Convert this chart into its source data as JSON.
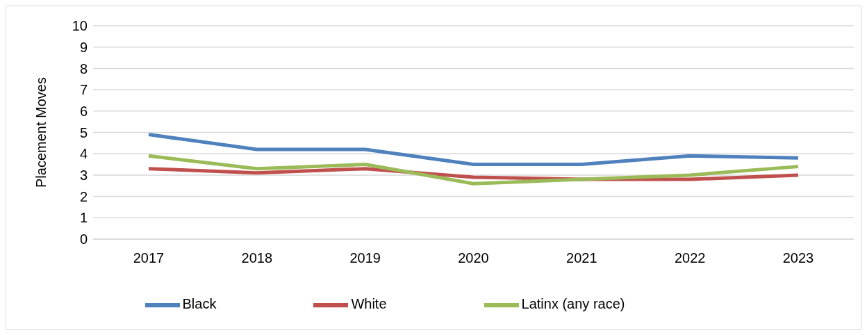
{
  "chart_data": {
    "type": "line",
    "ylabel": "Placement Moves",
    "categories": [
      "2017",
      "2018",
      "2019",
      "2020",
      "2021",
      "2022",
      "2023"
    ],
    "series": [
      {
        "name": "Black",
        "color": "#4f81bd",
        "values": [
          4.9,
          4.2,
          4.2,
          3.5,
          3.5,
          3.9,
          3.8
        ]
      },
      {
        "name": "White",
        "color": "#c0504d",
        "values": [
          3.3,
          3.1,
          3.3,
          2.9,
          2.8,
          2.8,
          3.0
        ]
      },
      {
        "name": "Latinx (any race)",
        "color": "#9bbb59",
        "values": [
          3.9,
          3.3,
          3.5,
          2.6,
          2.8,
          3.0,
          3.4
        ]
      }
    ],
    "ylim": [
      0,
      10
    ],
    "yticks": [
      0,
      1,
      2,
      3,
      4,
      5,
      6,
      7,
      8,
      9,
      10
    ],
    "grid": "y",
    "legend": "bottom",
    "marker": "none",
    "line_style": "solid"
  }
}
